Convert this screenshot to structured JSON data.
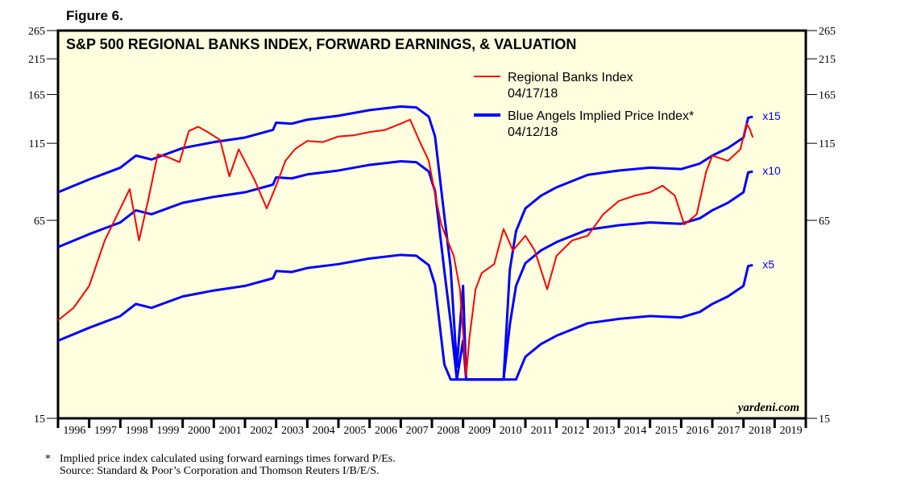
{
  "figure_label": "Figure 6.",
  "chart_data": {
    "type": "line",
    "title": "S&P 500 REGIONAL BANKS INDEX, FORWARD EARNINGS, & VALUATION",
    "y_scale": "log",
    "ylim": [
      15,
      265
    ],
    "y_ticks": [
      15,
      65,
      115,
      165,
      215,
      265
    ],
    "xlim": [
      1996,
      2020
    ],
    "x_tick_labels": [
      "1996",
      "1997",
      "1998",
      "1999",
      "2000",
      "2001",
      "2002",
      "2003",
      "2004",
      "2005",
      "2006",
      "2007",
      "2008",
      "2009",
      "2010",
      "2011",
      "2012",
      "2013",
      "2014",
      "2015",
      "2016",
      "2017",
      "2018",
      "2019"
    ],
    "legend": [
      {
        "label": "Regional Banks Index",
        "date": "04/17/18",
        "color": "#ff0000"
      },
      {
        "label": "Blue Angels Implied Price Index*",
        "date": "04/12/18",
        "color": "#0000ff"
      }
    ],
    "watermark": "yardeni.com",
    "floor_value": 20,
    "series": [
      {
        "name": "Regional Banks Index",
        "color": "#ff0000",
        "x": [
          1996,
          1996.5,
          1997,
          1997.5,
          1998,
          1998.3,
          1998.6,
          1998.9,
          1999.2,
          1999.5,
          1999.9,
          2000.2,
          2000.5,
          2000.8,
          2001.2,
          2001.5,
          2001.8,
          2002.3,
          2002.7,
          2003.0,
          2003.3,
          2003.6,
          2004,
          2004.5,
          2005,
          2005.5,
          2006,
          2006.5,
          2007,
          2007.3,
          2007.6,
          2007.9,
          2008.1,
          2008.3,
          2008.5,
          2008.7,
          2008.9,
          2009.1,
          2009.2,
          2009.4,
          2009.6,
          2010,
          2010.3,
          2010.6,
          2011.0,
          2011.3,
          2011.7,
          2012.0,
          2012.5,
          2013,
          2013.5,
          2014,
          2014.5,
          2015,
          2015.4,
          2015.8,
          2016.1,
          2016.5,
          2016.8,
          2017.0,
          2017.5,
          2017.9,
          2018.1,
          2018.2,
          2018.3
        ],
        "values": [
          31,
          34,
          40,
          56,
          71,
          82,
          56,
          76,
          106,
          104,
          100,
          126,
          130,
          125,
          118,
          90,
          110,
          88,
          71,
          84,
          101,
          110,
          117,
          116,
          121,
          122,
          125,
          127,
          133,
          137,
          117,
          101,
          79,
          63,
          56,
          50,
          39,
          20.5,
          27,
          39,
          44,
          47,
          61,
          52,
          58,
          52,
          39,
          50,
          56,
          58,
          68,
          75,
          78,
          80,
          84,
          78,
          63,
          68,
          93,
          105,
          101,
          110,
          133,
          128,
          120
        ]
      },
      {
        "name": "Blue Angels Implied Price Index x15",
        "color": "#0000ff",
        "multiple_label": "x15",
        "multiple": 15,
        "x": [
          1996,
          1997,
          1998,
          1998.5,
          1999,
          2000,
          2001,
          2002,
          2002.9,
          2003.0,
          2003.5,
          2004,
          2005,
          2006,
          2007,
          2007.5,
          2007.9,
          2008.1,
          2008.4,
          2008.6,
          2008.8,
          2009.0,
          2009.1,
          2009.3,
          2010.3,
          2010.5,
          2010.7,
          2011.0,
          2011.5,
          2012,
          2013,
          2014,
          2015,
          2016,
          2016.6,
          2017,
          2017.5,
          2018,
          2018.15,
          2018.3
        ],
        "values": [
          80,
          88,
          96,
          105,
          102,
          111,
          116,
          120,
          127,
          134,
          133,
          137,
          141,
          147,
          151,
          150,
          140,
          121,
          67,
          46,
          22,
          40,
          20,
          20,
          20,
          45,
          60,
          71,
          78,
          83,
          91,
          94,
          96,
          95,
          99,
          105,
          111,
          120,
          139,
          140
        ]
      }
    ],
    "multiples": [
      {
        "label": "x15",
        "factor": 1
      },
      {
        "label": "x10",
        "factor": 0.6667
      },
      {
        "label": "x5",
        "factor": 0.3333
      }
    ]
  },
  "footnote": {
    "star": "*",
    "line1": "Implied price index calculated using forward earnings times forward P/Es.",
    "line2": "Source: Standard & Poor’s Corporation and Thomson Reuters I/B/E/S."
  }
}
